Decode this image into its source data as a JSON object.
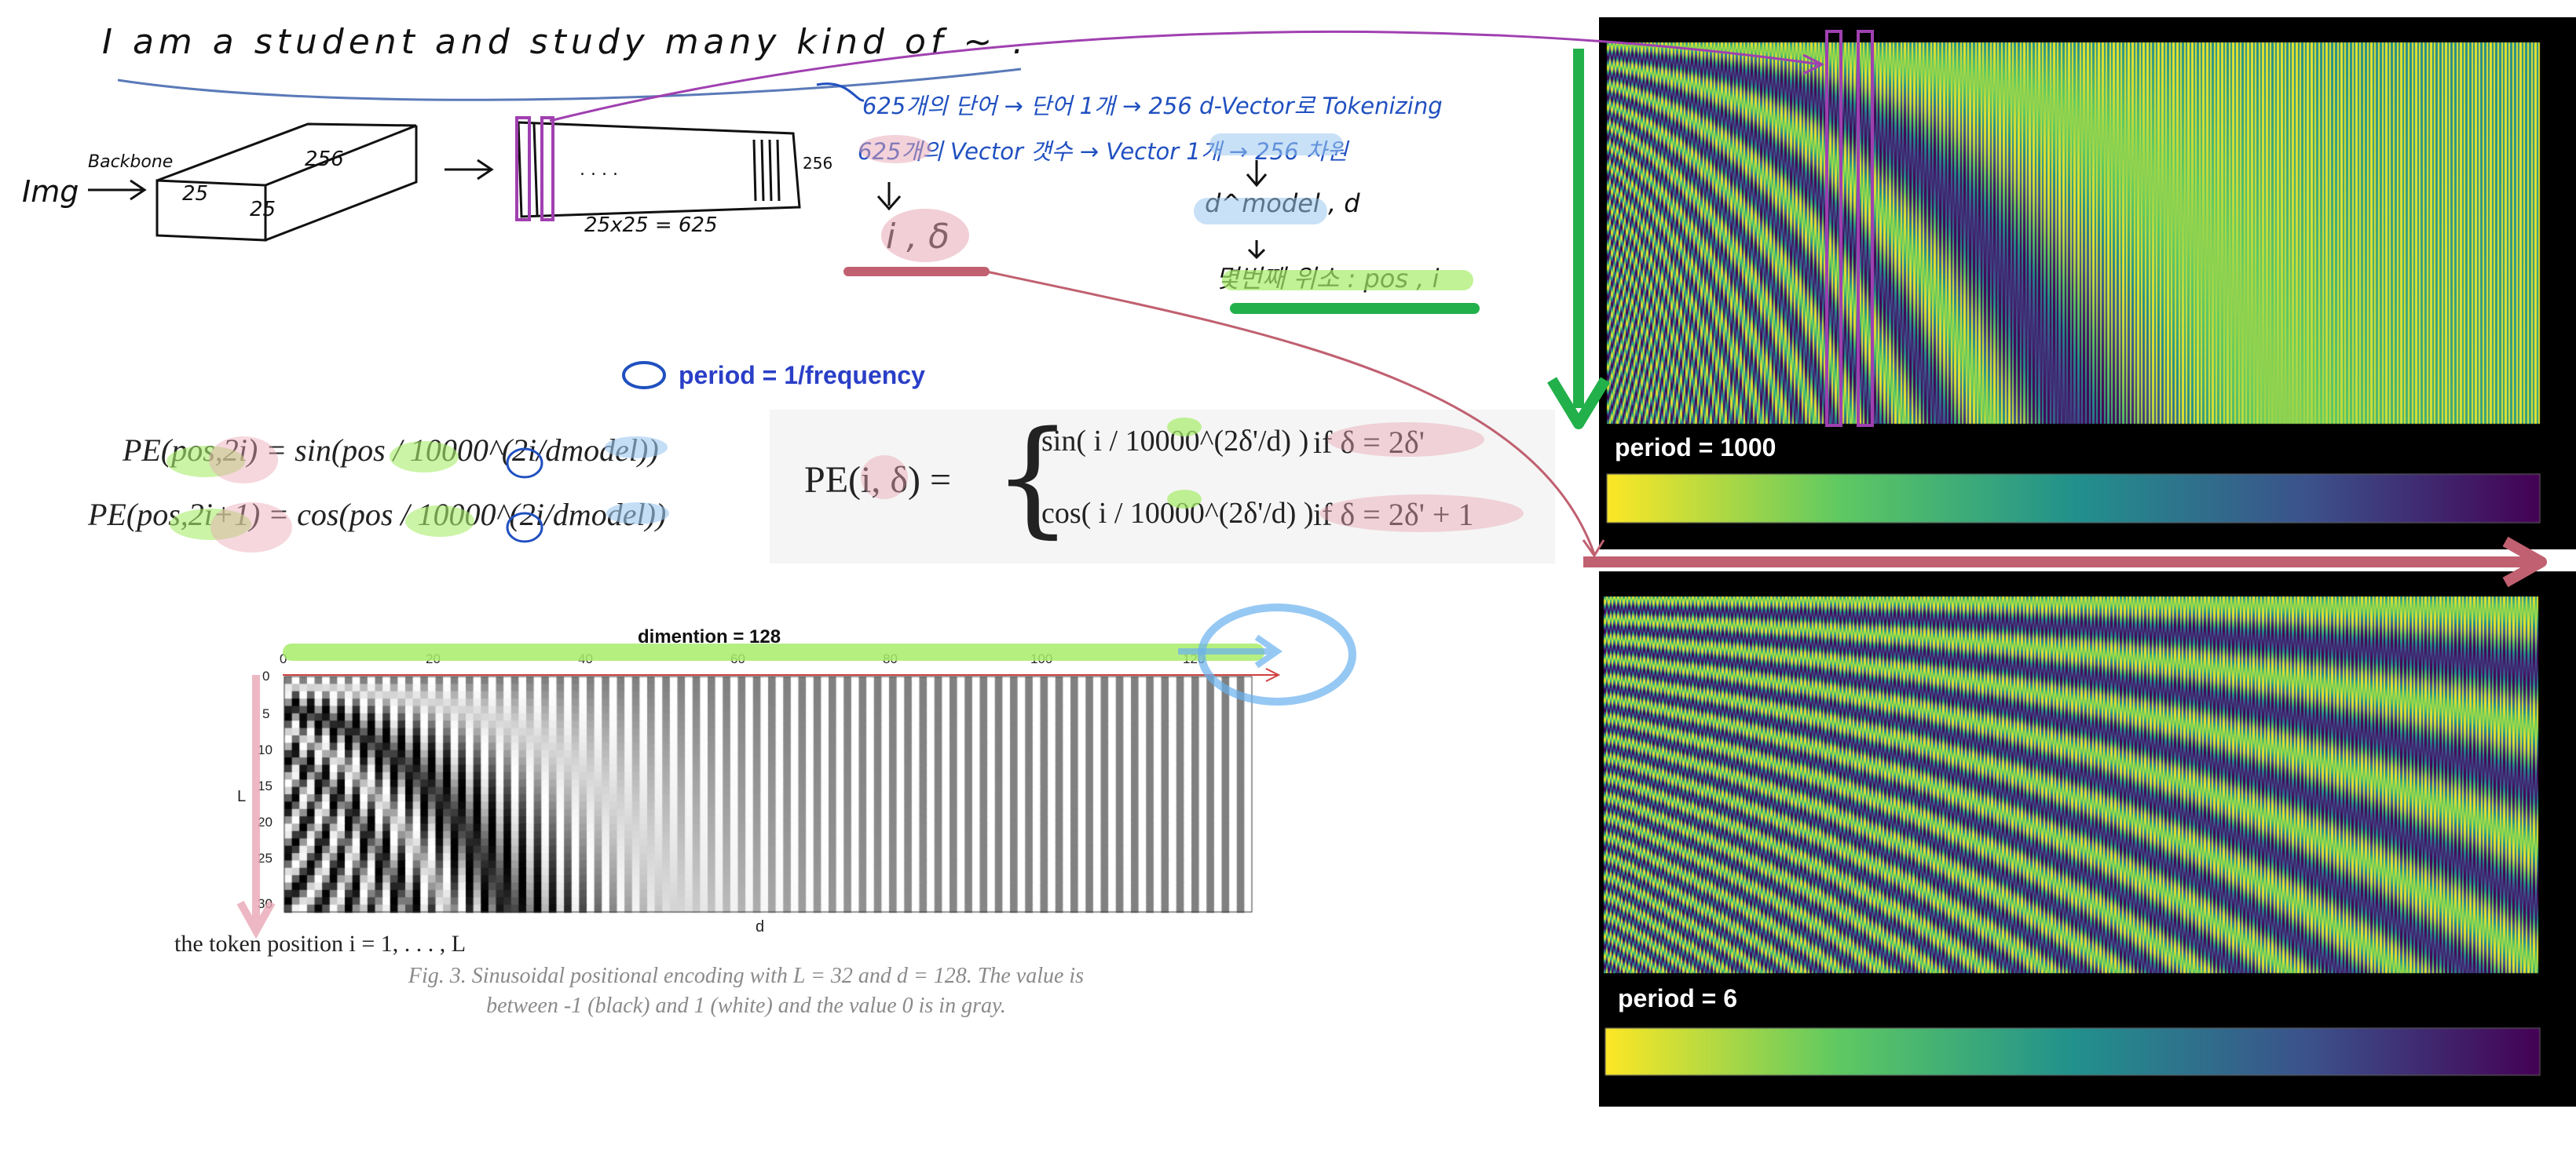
{
  "handwriting": {
    "sentence": "I am a student and study many kind of ~ .",
    "backbone": "Backbone",
    "img": "Img",
    "box_dims": [
      "256",
      "25",
      "25"
    ],
    "seq_dim": "256",
    "seq_formula": "25x25 = 625",
    "seq_dots": ". . . .",
    "korean_line1": "625개의 단어 → 단어 1개 → 256 d-Vector로 Tokenizing",
    "korean_line2": "625개의 Vector 갯수 → Vector 1개 → 256 차원",
    "i_delta": "i , δ",
    "d_model": "d^model , d",
    "position_note": "몇번째 위소 : pos , i"
  },
  "legend_note": {
    "text": "period = 1/frequency"
  },
  "equations": {
    "left_line1": "PE(pos,2i) = sin(pos / 10000^(2i/dmodel))",
    "left_line2": "PE(pos,2i+1) = cos(pos / 10000^(2i/dmodel))",
    "right_lhs": "PE(i, δ) =",
    "right_case1": "sin( i / 10000^(2δ'/d) )",
    "right_case1_cond": "if δ = 2δ'",
    "right_case2": "cos( i / 10000^(2δ'/d) )",
    "right_case2_cond": "if δ = 2δ' + 1"
  },
  "heatmap": {
    "title": "dimention = 128",
    "xlabel": "d",
    "ylabel": "L",
    "xticks": [
      "0",
      "20",
      "40",
      "60",
      "80",
      "100",
      "120"
    ],
    "yticks": [
      "0",
      "5",
      "10",
      "15",
      "20",
      "25",
      "30"
    ],
    "token_caption": "the token position i = 1, . . . , L",
    "fig_caption_line1": "Fig. 3. Sinusoidal positional encoding with L = 32 and d = 128. The value is",
    "fig_caption_line2": "between -1 (black) and 1 (white) and the value 0 is in gray."
  },
  "panels": {
    "top_label": "period = 1000",
    "bottom_label": "period = 6"
  },
  "colors": {
    "purple": "#a040b0",
    "green": "#22b04a",
    "rose": "#c06070",
    "blue_ink": "#2050c0",
    "title_blue": "#2a3fc7",
    "viridis_low": "#440154",
    "viridis_mid": "#21918c",
    "viridis_high": "#fde725",
    "panel_bg": "#000000"
  }
}
